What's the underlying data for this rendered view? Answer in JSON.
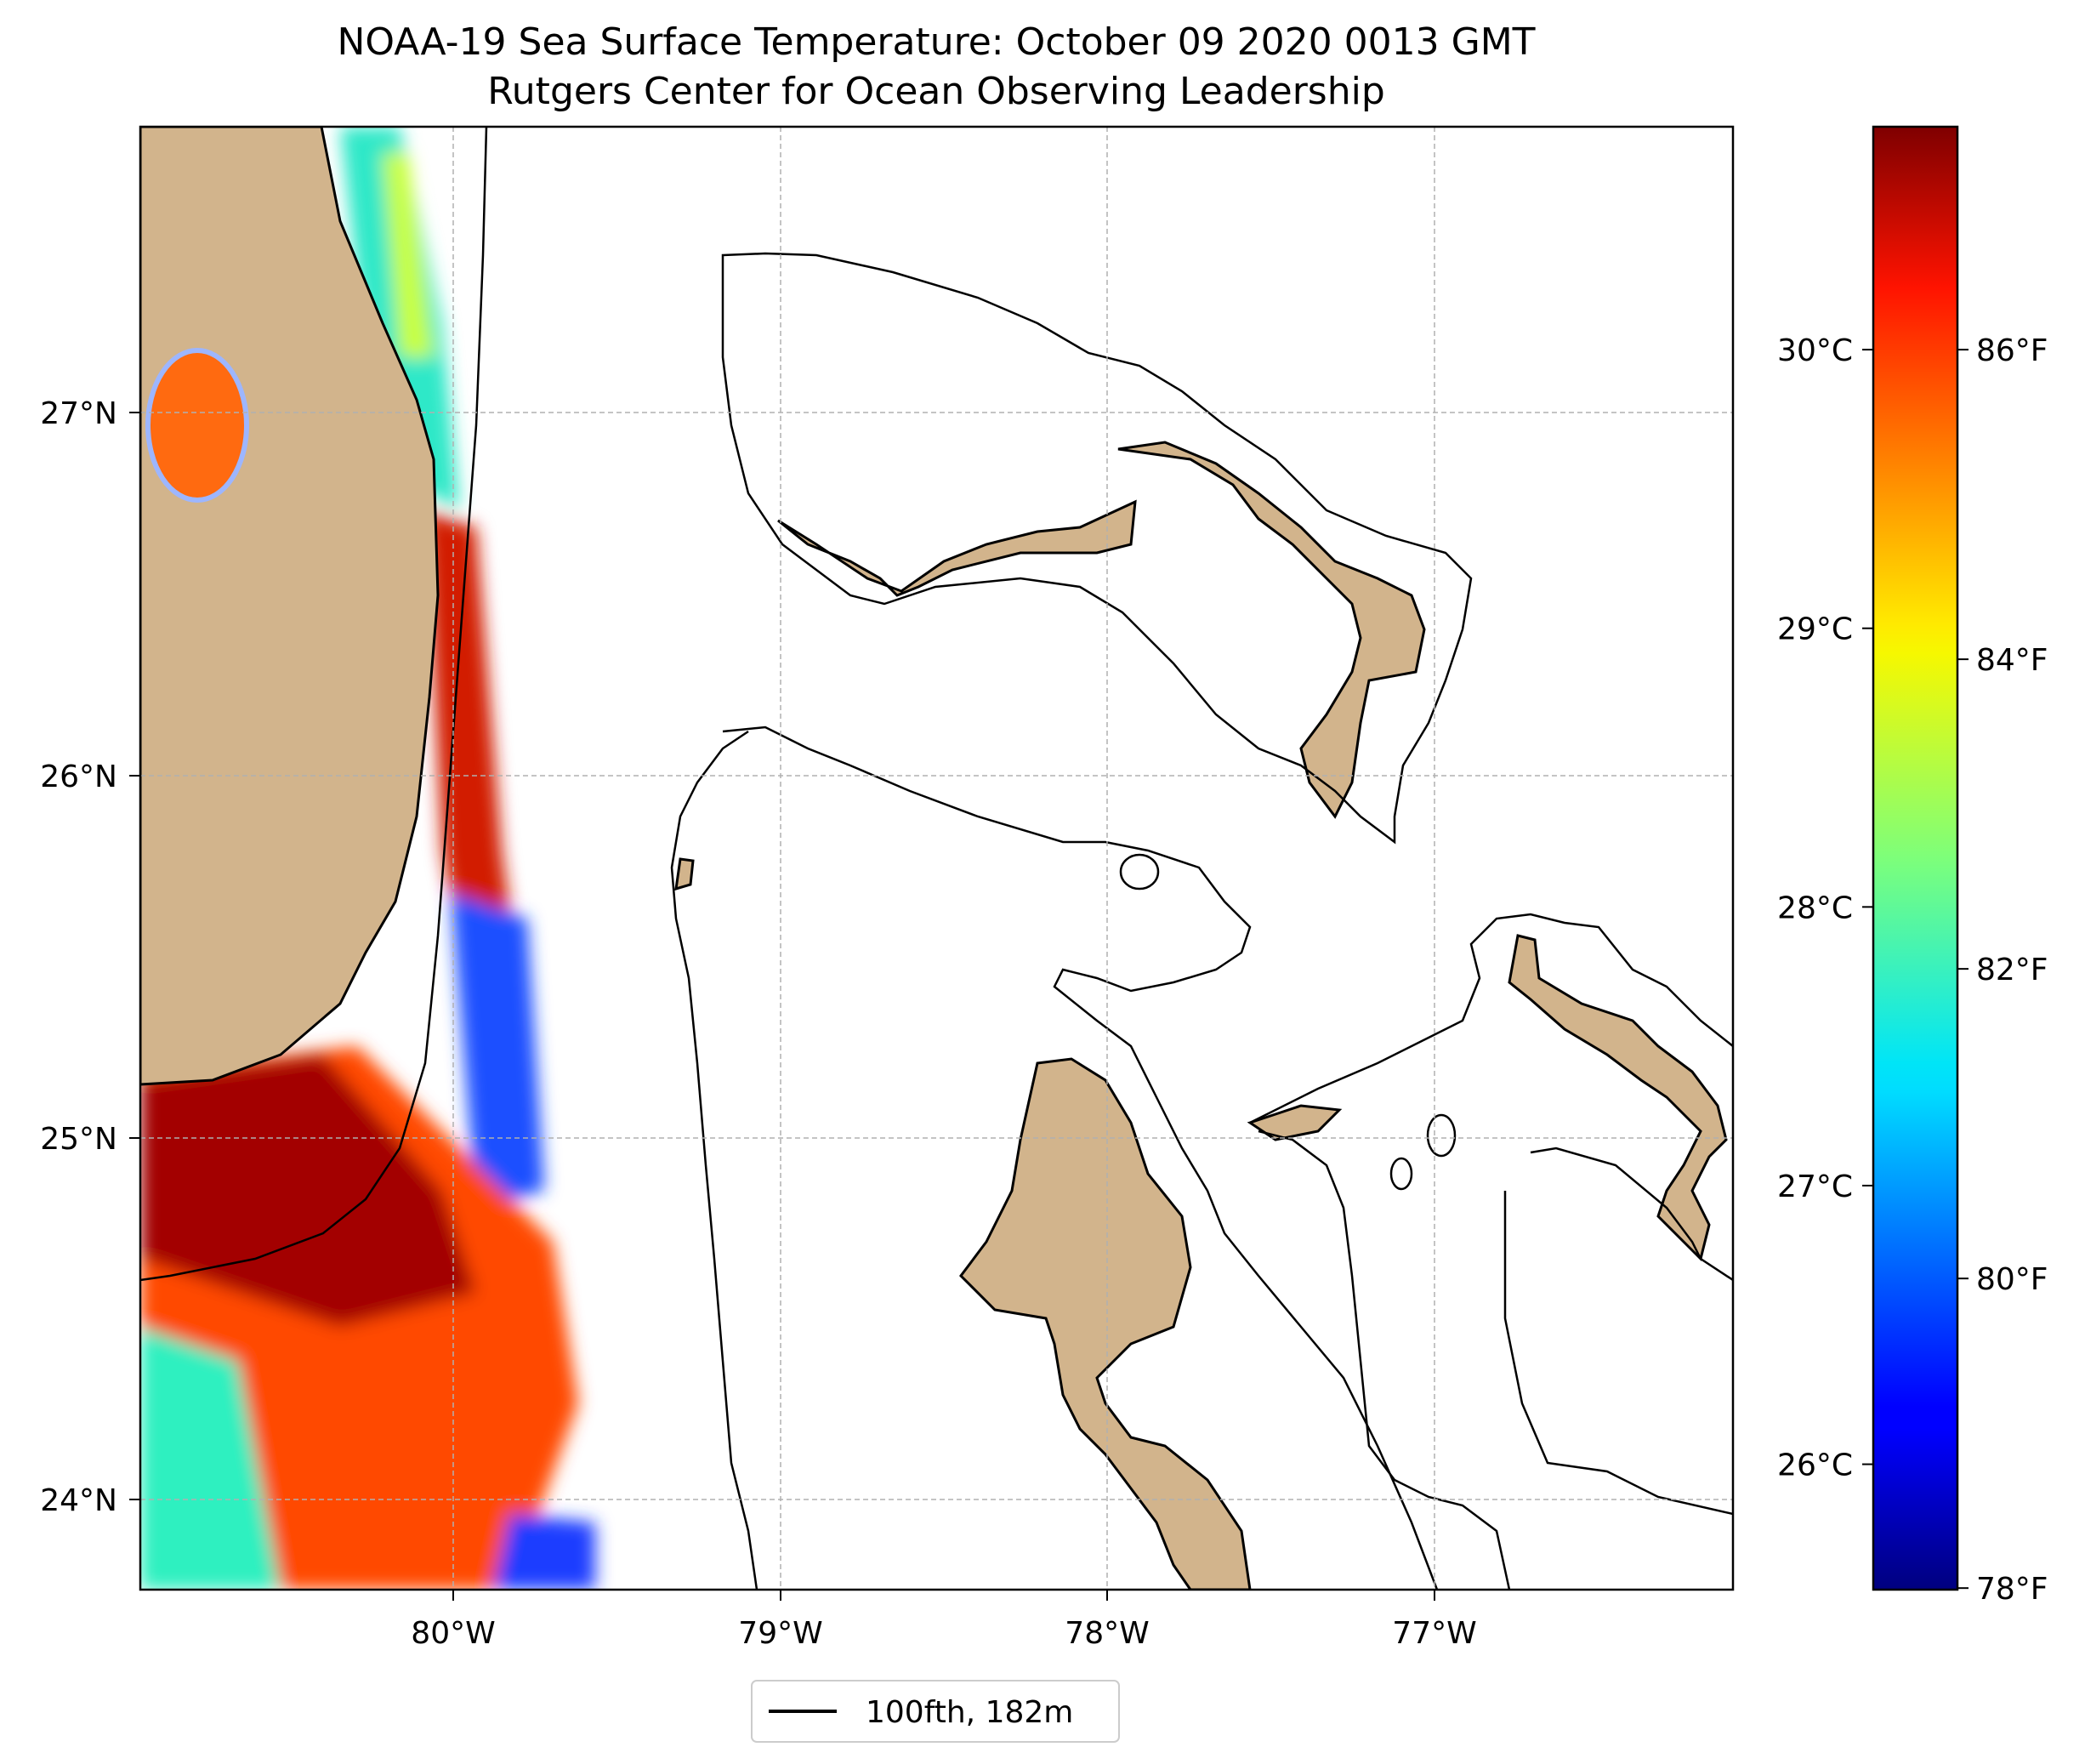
{
  "title": {
    "line1": "NOAA-19 Sea Surface Temperature: October 09 2020 0013 GMT",
    "line2": "Rutgers Center for Ocean Observing Leadership"
  },
  "map": {
    "lon_range": [
      -80.96,
      -76.09
    ],
    "lat_range": [
      23.73,
      27.8
    ],
    "x_ticks": [
      {
        "lon": -80,
        "label": "80°W"
      },
      {
        "lon": -79,
        "label": "79°W"
      },
      {
        "lon": -78,
        "label": "78°W"
      },
      {
        "lon": -77,
        "label": "77°W"
      }
    ],
    "y_ticks": [
      {
        "lat": 27,
        "label": "27°N"
      },
      {
        "lat": 26,
        "label": "26°N"
      },
      {
        "lat": 25,
        "label": "25°N"
      },
      {
        "lat": 24,
        "label": "24°N"
      }
    ],
    "grid": true,
    "colors": {
      "land": "#d2b48c",
      "coastline": "#000000",
      "isobath": "#000000",
      "grid": "#b0b0b0",
      "no_data": "#ffffff"
    }
  },
  "colorbar": {
    "colormap": "jet",
    "range_c": [
      25.55,
      30.8
    ],
    "celsius_ticks": [
      {
        "value": 26,
        "label": "26°C"
      },
      {
        "value": 27,
        "label": "27°C"
      },
      {
        "value": 28,
        "label": "28°C"
      },
      {
        "value": 29,
        "label": "29°C"
      },
      {
        "value": 30,
        "label": "30°C"
      }
    ],
    "fahrenheit_ticks": [
      {
        "value": 78,
        "label": "78°F"
      },
      {
        "value": 80,
        "label": "80°F"
      },
      {
        "value": 82,
        "label": "82°F"
      },
      {
        "value": 84,
        "label": "84°F"
      },
      {
        "value": 86,
        "label": "86°F"
      }
    ]
  },
  "legend": {
    "placement": "bottom-center",
    "entries": [
      {
        "label": "100fth, 182m",
        "color": "#000000"
      }
    ]
  }
}
